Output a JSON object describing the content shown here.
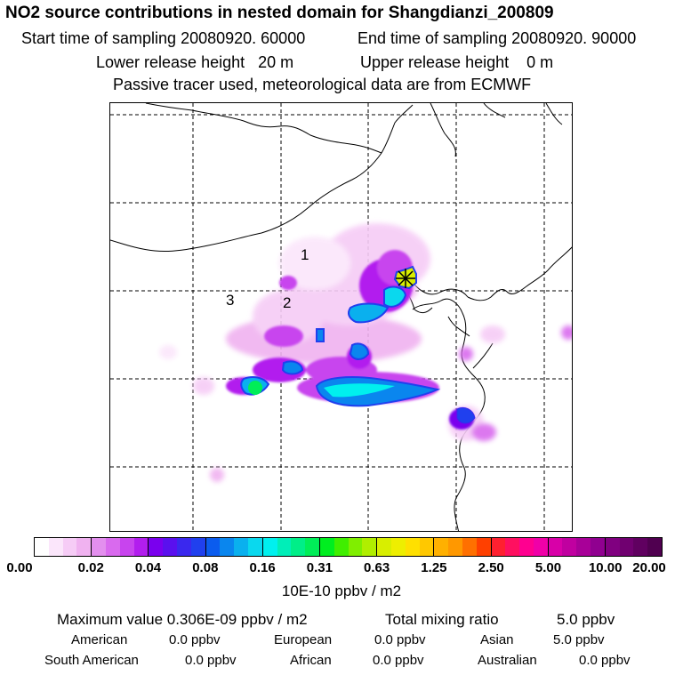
{
  "header": {
    "title": "NO2 source contributions in nested domain for Shangdianzi_200809",
    "start_label": "Start time of sampling 20080920. 60000",
    "end_label": "End time of sampling 20080920. 90000",
    "lower_label": "Lower release height   20 m",
    "upper_label": "Upper release height    0 m",
    "tracer_note": "Passive tracer used, meteorological data are from ECMWF"
  },
  "map": {
    "labels": [
      "1",
      "2",
      "3"
    ],
    "receptor_marker": "star-icon"
  },
  "colorbar": {
    "ticks": [
      "0.00",
      "0.02",
      "0.04",
      "0.08",
      "0.16",
      "0.31",
      "0.63",
      "1.25",
      "2.50",
      "5.00",
      "10.00",
      "20.00"
    ],
    "units": "10E-10 ppbv / m2",
    "colors": [
      [
        "#ffffff",
        "#fbe6fb",
        "#f6ccf6",
        "#f0b2f0"
      ],
      [
        "#e38fee",
        "#d96aee",
        "#c844ee",
        "#b21eee"
      ],
      [
        "#7a00ee",
        "#5a10ee",
        "#3a28ee",
        "#2040ee"
      ],
      [
        "#0b5cee",
        "#0a86ee",
        "#0ab0ee",
        "#0ad8ee"
      ],
      [
        "#00f0ee",
        "#00eeb8",
        "#00ee88",
        "#00ee58"
      ],
      [
        "#00ee20",
        "#40ee00",
        "#80ee00",
        "#b0ee00"
      ],
      [
        "#d8ee00",
        "#eeee00",
        "#ffe000",
        "#ffc800"
      ],
      [
        "#ffb000",
        "#ff9800",
        "#ff7000",
        "#ff4000"
      ],
      [
        "#ff2030",
        "#ff1060",
        "#ff0090",
        "#f000a8"
      ],
      [
        "#d800a8",
        "#c000a0",
        "#a80098",
        "#900090"
      ],
      [
        "#800080",
        "#700070",
        "#600060",
        "#500050"
      ]
    ]
  },
  "summary": {
    "max_label": "Maximum value  0.306E-09 ppbv / m2",
    "total_label": "Total mixing ratio",
    "total_value": "5.0 ppbv",
    "regions": [
      {
        "name": "American",
        "value": "0.0 ppbv"
      },
      {
        "name": "European",
        "value": "0.0 ppbv"
      },
      {
        "name": "Asian",
        "value": "5.0 ppbv"
      },
      {
        "name": "South American",
        "value": "0.0 ppbv"
      },
      {
        "name": "African",
        "value": "0.0 ppbv"
      },
      {
        "name": "Australian",
        "value": "0.0 ppbv"
      }
    ]
  }
}
